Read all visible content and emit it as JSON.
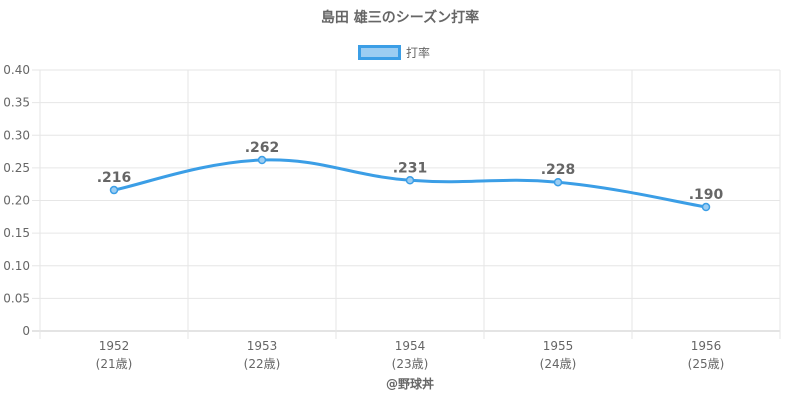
{
  "chart_data": {
    "type": "line",
    "title": "島田 雄三のシーズン打率",
    "categories": [
      "1952",
      "1953",
      "1954",
      "1955",
      "1956"
    ],
    "category_sublabels": [
      "(21歳)",
      "(22歳)",
      "(23歳)",
      "(24歳)",
      "(25歳)"
    ],
    "series": [
      {
        "name": "打率",
        "values": [
          0.216,
          0.262,
          0.231,
          0.228,
          0.19
        ],
        "data_labels": [
          ".216",
          ".262",
          ".231",
          ".228",
          ".190"
        ],
        "color": "#3b9ee6",
        "fill": "#9ccdf2"
      }
    ],
    "ylim": [
      0,
      0.4
    ],
    "y_ticks": [
      "0",
      "0.05",
      "0.10",
      "0.15",
      "0.20",
      "0.25",
      "0.30",
      "0.35",
      "0.40"
    ],
    "xlabel": "",
    "ylabel": "",
    "grid": true,
    "legend_position": "top"
  },
  "credit": "@野球丼"
}
